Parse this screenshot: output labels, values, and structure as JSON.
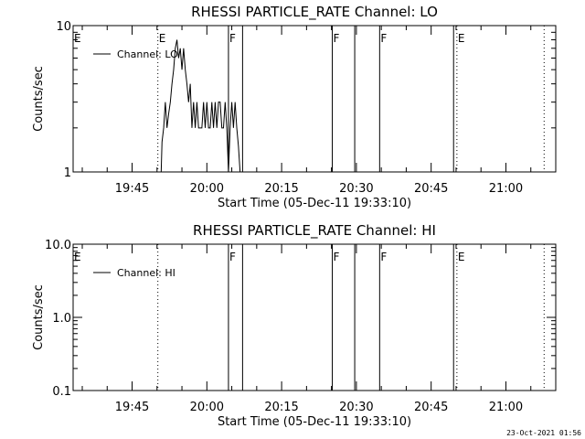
{
  "footer_timestamp": "23-Oct-2021 01:56",
  "chart_data": [
    {
      "type": "line",
      "title": "RHESSI PARTICLE_RATE Channel: LO",
      "xlabel": "Start Time (05-Dec-11 19:33:10)",
      "ylabel": "Counts/sec",
      "yscale": "log",
      "ylim": [
        1,
        10
      ],
      "ytick_values": [
        1,
        10
      ],
      "ytick_labels": [
        "1",
        "10"
      ],
      "xlim": [
        "19:33:10",
        "21:10:00"
      ],
      "xtick_labels": [
        "19:45",
        "20:00",
        "20:15",
        "20:30",
        "20:45",
        "21:00"
      ],
      "legend_position": "top-left",
      "series": [
        {
          "name": "Channel: LO",
          "x": [
            "19:50:50",
            "19:51:00",
            "19:51:20",
            "19:51:40",
            "19:52:00",
            "19:52:20",
            "19:52:40",
            "19:53:00",
            "19:53:20",
            "19:53:40",
            "19:54:00",
            "19:54:20",
            "19:54:40",
            "19:55:00",
            "19:55:20",
            "19:55:40",
            "19:56:00",
            "19:56:20",
            "19:56:40",
            "19:57:00",
            "19:57:20",
            "19:57:40",
            "19:58:00",
            "19:58:20",
            "19:58:40",
            "19:59:00",
            "19:59:20",
            "19:59:40",
            "20:00:00",
            "20:00:20",
            "20:00:40",
            "20:01:00",
            "20:01:20",
            "20:01:40",
            "20:02:00",
            "20:02:20",
            "20:02:40",
            "20:03:00",
            "20:03:20",
            "20:03:40",
            "20:04:00",
            "20:04:20",
            "20:04:40",
            "20:05:00",
            "20:05:20",
            "20:05:40",
            "20:06:00",
            "20:06:20",
            "20:06:40"
          ],
          "y": [
            1,
            1.6,
            2,
            3,
            2,
            2.5,
            3,
            4,
            5,
            7,
            8,
            6,
            7,
            5,
            7,
            5,
            4,
            3,
            4,
            2,
            3,
            2,
            3,
            2,
            2,
            2,
            3,
            2,
            3,
            2,
            2,
            3,
            2,
            3,
            2,
            3,
            3,
            2,
            2,
            3,
            2,
            1,
            2,
            3,
            2,
            3,
            2,
            1.5,
            1
          ]
        }
      ],
      "flag_lines": [
        {
          "time": "19:50:10",
          "label": "E",
          "style": "dotted"
        },
        {
          "time": "20:04:20",
          "label": "F",
          "style": "solid"
        },
        {
          "time": "20:07:10",
          "label": "",
          "style": "solid"
        },
        {
          "time": "20:25:10",
          "label": "F",
          "style": "solid"
        },
        {
          "time": "20:29:40",
          "label": "",
          "style": "solid"
        },
        {
          "time": "20:34:40",
          "label": "F",
          "style": "solid"
        },
        {
          "time": "20:49:30",
          "label": "",
          "style": "solid"
        },
        {
          "time": "20:50:10",
          "label": "E",
          "style": "dotted"
        },
        {
          "time": "21:07:40",
          "label": "",
          "style": "dotted"
        }
      ],
      "edge_labels": [
        {
          "label": "E",
          "side": "left"
        }
      ]
    },
    {
      "type": "line",
      "title": "RHESSI PARTICLE_RATE Channel: HI",
      "xlabel": "Start Time (05-Dec-11 19:33:10)",
      "ylabel": "Counts/sec",
      "yscale": "log",
      "ylim": [
        0.1,
        10
      ],
      "ytick_values": [
        0.1,
        1,
        10
      ],
      "ytick_labels": [
        "0.1",
        "1.0",
        "10.0"
      ],
      "xlim": [
        "19:33:10",
        "21:10:00"
      ],
      "xtick_labels": [
        "19:45",
        "20:00",
        "20:15",
        "20:30",
        "20:45",
        "21:00"
      ],
      "legend_position": "top-left",
      "series": [
        {
          "name": "Channel: HI",
          "x": [],
          "y": []
        }
      ],
      "flag_lines": [
        {
          "time": "19:50:10",
          "label": "",
          "style": "dotted"
        },
        {
          "time": "20:04:20",
          "label": "F",
          "style": "solid"
        },
        {
          "time": "20:07:10",
          "label": "",
          "style": "solid"
        },
        {
          "time": "20:25:10",
          "label": "F",
          "style": "solid"
        },
        {
          "time": "20:29:40",
          "label": "",
          "style": "solid"
        },
        {
          "time": "20:34:40",
          "label": "F",
          "style": "solid"
        },
        {
          "time": "20:49:30",
          "label": "",
          "style": "solid"
        },
        {
          "time": "20:50:10",
          "label": "E",
          "style": "dotted"
        },
        {
          "time": "21:07:40",
          "label": "",
          "style": "dotted"
        }
      ],
      "edge_labels": [
        {
          "label": "E",
          "side": "left"
        }
      ]
    }
  ]
}
